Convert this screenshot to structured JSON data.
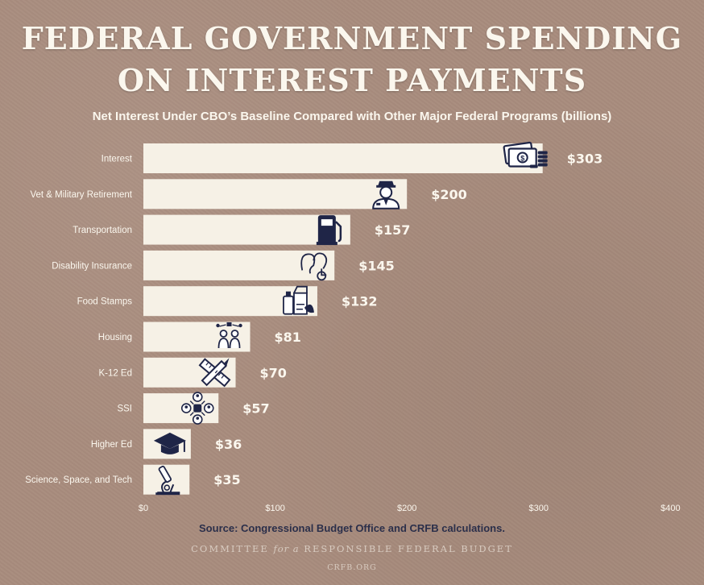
{
  "title_line1": "FEDERAL GOVERNMENT SPENDING",
  "title_line2": "ON INTEREST PAYMENTS",
  "colors": {
    "background": "#a88c7d",
    "bar": "#f6f1e6",
    "label": "#fbf7ee",
    "icon": "#1f2547",
    "source": "#2b2f4a"
  },
  "footer": {
    "source": "Source: Congressional Budget Office and CRFB calculations.",
    "org_prefix": "COMMITTEE",
    "org_italic": "for a",
    "org_suffix": "RESPONSIBLE FEDERAL BUDGET",
    "site": "CRFB.ORG"
  },
  "chart_data": {
    "type": "bar",
    "orientation": "horizontal",
    "title": "Net Interest Under CBO’s Baseline Compared with Other Major Federal Programs (billions)",
    "categories": [
      "Interest",
      "Vet & Military Retirement",
      "Transportation",
      "Disability Insurance",
      "Food Stamps",
      "Housing",
      "K-12 Ed",
      "SSI",
      "Higher Ed",
      "Science, Space, and Tech"
    ],
    "values": [
      303,
      200,
      157,
      145,
      132,
      81,
      70,
      57,
      36,
      35
    ],
    "data_labels": [
      "$303",
      "$200",
      "$157",
      "$145",
      "$132",
      "$81",
      "$70",
      "$57",
      "$36",
      "$35"
    ],
    "icons": [
      "money-icon",
      "veteran-icon",
      "fuel-pump-icon",
      "disability-icon",
      "groceries-icon",
      "family-housing-icon",
      "ruler-pencil-icon",
      "ssi-network-icon",
      "graduation-cap-icon",
      "microscope-icon"
    ],
    "xlim": [
      0,
      400
    ],
    "xticks": [
      "$0",
      "$100",
      "$200",
      "$300",
      "$400"
    ],
    "xtick_values": [
      0,
      100,
      200,
      300,
      400
    ],
    "grid": false,
    "legend": "none"
  }
}
